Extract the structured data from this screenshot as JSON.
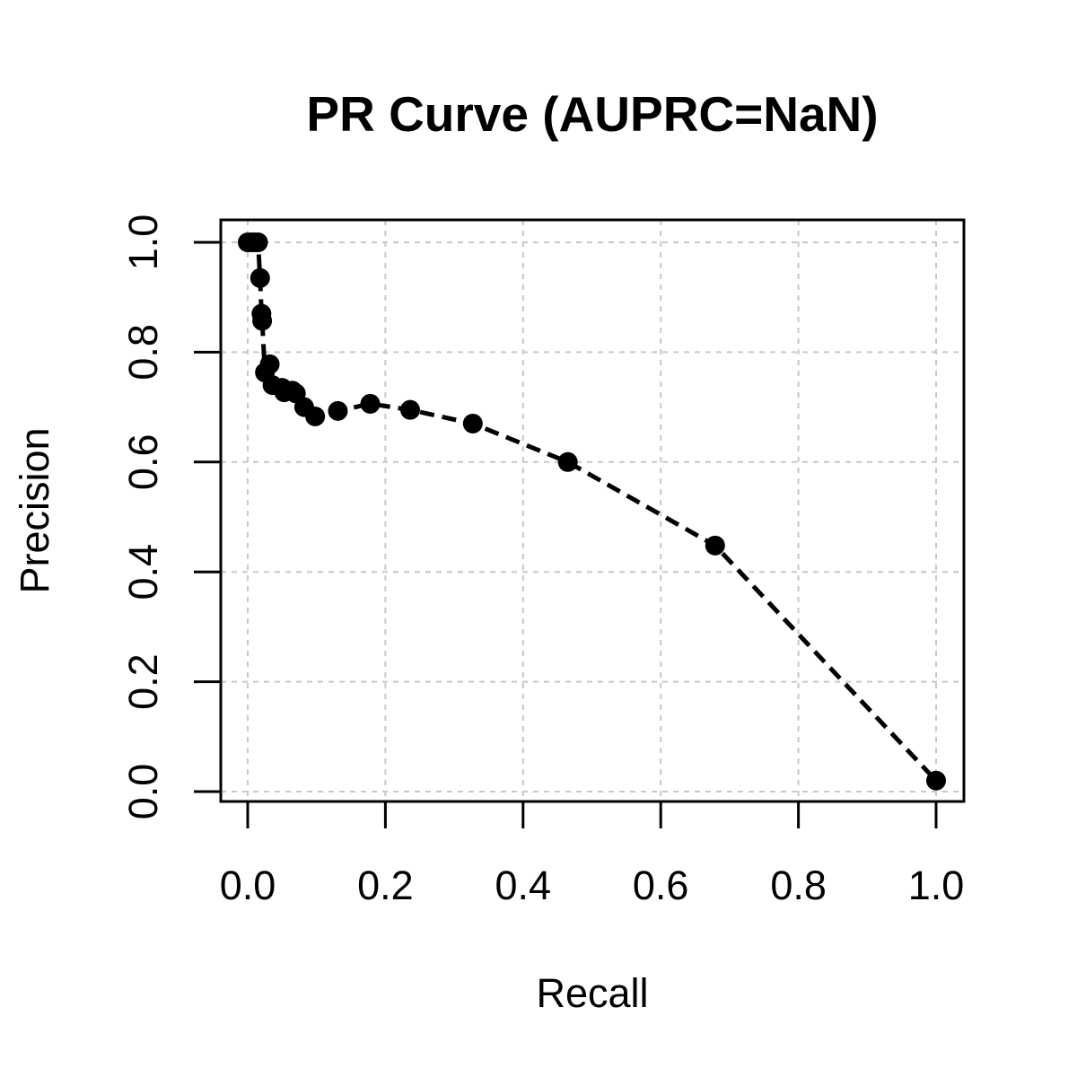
{
  "chart_data": {
    "type": "line",
    "title": "PR Curve (AUPRC=NaN)",
    "xlabel": "Recall",
    "ylabel": "Precision",
    "xlim": [
      0,
      1
    ],
    "ylim": [
      0,
      1
    ],
    "x_ticks": [
      "0.0",
      "0.2",
      "0.4",
      "0.6",
      "0.8",
      "1.0"
    ],
    "y_ticks": [
      "0.0",
      "0.2",
      "0.4",
      "0.6",
      "0.8",
      "1.0"
    ],
    "grid": true,
    "legend": "none",
    "colors": {
      "series": "#000000",
      "grid": "#c8c8c8",
      "axis": "#000000"
    },
    "series": [
      {
        "line_style": "dashed",
        "marker": "filled-circle",
        "points": [
          {
            "x": 0.0,
            "y": 1.0
          },
          {
            "x": 0.005,
            "y": 1.0
          },
          {
            "x": 0.01,
            "y": 1.0
          },
          {
            "x": 0.015,
            "y": 1.0
          },
          {
            "x": 0.018,
            "y": 0.935
          },
          {
            "x": 0.02,
            "y": 0.87
          },
          {
            "x": 0.021,
            "y": 0.857
          },
          {
            "x": 0.025,
            "y": 0.763
          },
          {
            "x": 0.032,
            "y": 0.778
          },
          {
            "x": 0.036,
            "y": 0.74
          },
          {
            "x": 0.05,
            "y": 0.735
          },
          {
            "x": 0.053,
            "y": 0.727
          },
          {
            "x": 0.065,
            "y": 0.73
          },
          {
            "x": 0.07,
            "y": 0.725
          },
          {
            "x": 0.082,
            "y": 0.7
          },
          {
            "x": 0.098,
            "y": 0.683
          },
          {
            "x": 0.131,
            "y": 0.693
          },
          {
            "x": 0.178,
            "y": 0.706
          },
          {
            "x": 0.236,
            "y": 0.695
          },
          {
            "x": 0.327,
            "y": 0.67
          },
          {
            "x": 0.465,
            "y": 0.6
          },
          {
            "x": 0.679,
            "y": 0.448
          },
          {
            "x": 1.0,
            "y": 0.02
          }
        ]
      }
    ]
  }
}
